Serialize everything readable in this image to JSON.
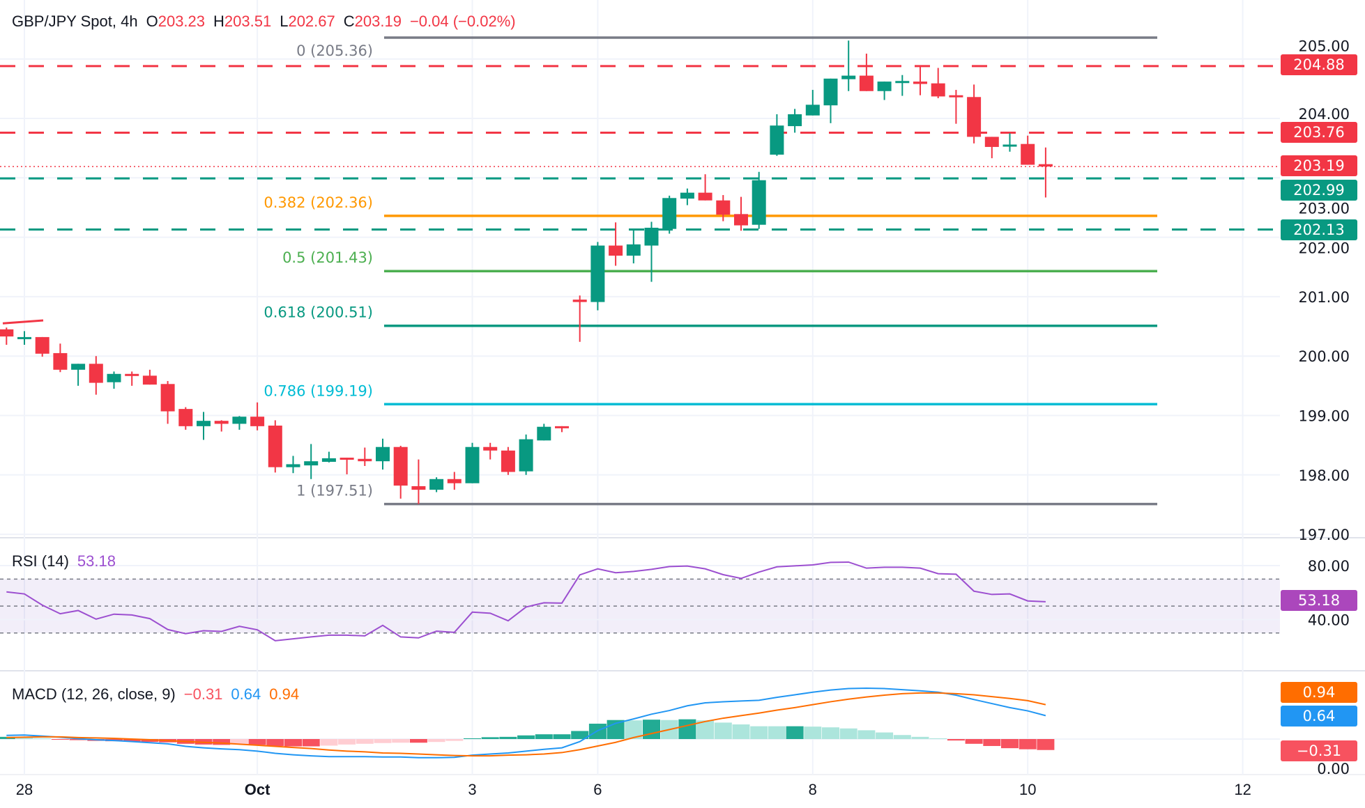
{
  "header": {
    "symbol": "GBP/JPY Spot, 4h",
    "o_label": "O",
    "o": "203.23",
    "h_label": "H",
    "h": "203.51",
    "l_label": "L",
    "l": "202.67",
    "c_label": "C",
    "c": "203.19",
    "change": "−0.04 (−0.02%)"
  },
  "colors": {
    "up": "#089981",
    "down": "#f23645",
    "grid": "#f0f3fa",
    "text": "#131722",
    "rsi": "#9c4fd0",
    "macd": "#2196f3",
    "signal": "#ff6d00"
  },
  "chart_data": [
    {
      "type": "candlestick",
      "title": "GBP/JPY Spot, 4h",
      "x_ticks": [
        {
          "label": "28",
          "index": 1
        },
        {
          "label": "Oct",
          "index": 14
        },
        {
          "label": "3",
          "index": 26
        },
        {
          "label": "6",
          "index": 33
        },
        {
          "label": "8",
          "index": 45
        },
        {
          "label": "10",
          "index": 57
        },
        {
          "label": "12",
          "index": 69
        }
      ],
      "y_ticks": [
        "205.00",
        "204.00",
        "203.00",
        "202.00",
        "201.00",
        "200.00",
        "199.00",
        "198.00",
        "197.00"
      ],
      "ylim": [
        196.95,
        206.0
      ],
      "grid": true,
      "ohlc": [
        [
          200.45,
          200.48,
          200.19,
          200.33
        ],
        [
          200.3,
          200.42,
          200.19,
          200.32
        ],
        [
          200.32,
          200.32,
          199.99,
          200.04
        ],
        [
          200.05,
          200.21,
          199.73,
          199.77
        ],
        [
          199.77,
          199.87,
          199.5,
          199.87
        ],
        [
          199.87,
          200.0,
          199.35,
          199.55
        ],
        [
          199.56,
          199.74,
          199.45,
          199.7
        ],
        [
          199.7,
          199.74,
          199.5,
          199.67
        ],
        [
          199.67,
          199.77,
          199.52,
          199.52
        ],
        [
          199.53,
          199.58,
          198.86,
          199.07
        ],
        [
          199.11,
          199.14,
          198.76,
          198.82
        ],
        [
          198.82,
          199.06,
          198.59,
          198.91
        ],
        [
          198.91,
          198.92,
          198.73,
          198.86
        ],
        [
          198.86,
          198.99,
          198.76,
          198.98
        ],
        [
          198.98,
          199.22,
          198.75,
          198.82
        ],
        [
          198.83,
          198.92,
          198.04,
          198.13
        ],
        [
          198.13,
          198.32,
          198.03,
          198.18
        ],
        [
          198.16,
          198.52,
          197.93,
          198.23
        ],
        [
          198.22,
          198.39,
          198.21,
          198.28
        ],
        [
          198.29,
          198.29,
          198.01,
          198.27
        ],
        [
          198.27,
          198.46,
          198.15,
          198.23
        ],
        [
          198.23,
          198.61,
          198.09,
          198.47
        ],
        [
          198.47,
          198.49,
          197.6,
          197.82
        ],
        [
          197.81,
          198.26,
          197.51,
          197.75
        ],
        [
          197.75,
          197.96,
          197.71,
          197.93
        ],
        [
          197.93,
          198.05,
          197.75,
          197.86
        ],
        [
          197.86,
          198.54,
          197.86,
          198.47
        ],
        [
          198.47,
          198.54,
          198.26,
          198.41
        ],
        [
          198.41,
          198.47,
          198.0,
          198.05
        ],
        [
          198.06,
          198.68,
          198.0,
          198.6
        ],
        [
          198.58,
          198.86,
          198.58,
          198.81
        ],
        [
          198.82,
          198.82,
          198.72,
          198.8
        ],
        [
          200.95,
          201.02,
          200.24,
          200.91
        ],
        [
          200.91,
          201.92,
          200.77,
          201.86
        ],
        [
          201.86,
          202.25,
          201.52,
          201.69
        ],
        [
          201.69,
          202.12,
          201.56,
          201.88
        ],
        [
          201.86,
          202.26,
          201.25,
          202.16
        ],
        [
          202.14,
          202.7,
          202.06,
          202.66
        ],
        [
          202.65,
          202.82,
          202.54,
          202.75
        ],
        [
          202.75,
          203.06,
          202.62,
          202.62
        ],
        [
          202.62,
          202.71,
          202.27,
          202.38
        ],
        [
          202.39,
          202.68,
          202.11,
          202.2
        ],
        [
          202.21,
          203.1,
          202.14,
          202.96
        ],
        [
          203.39,
          204.07,
          203.37,
          203.88
        ],
        [
          203.87,
          204.16,
          203.76,
          204.07
        ],
        [
          204.05,
          204.48,
          204.05,
          204.23
        ],
        [
          204.22,
          204.67,
          203.92,
          204.67
        ],
        [
          204.66,
          205.31,
          204.46,
          204.72
        ],
        [
          204.72,
          205.09,
          204.46,
          204.46
        ],
        [
          204.46,
          204.62,
          204.31,
          204.62
        ],
        [
          204.62,
          204.73,
          204.38,
          204.63
        ],
        [
          204.62,
          204.87,
          204.39,
          204.58
        ],
        [
          204.59,
          204.85,
          204.34,
          204.37
        ],
        [
          204.39,
          204.48,
          203.91,
          204.37
        ],
        [
          204.36,
          204.57,
          203.58,
          203.69
        ],
        [
          203.69,
          203.69,
          203.33,
          203.52
        ],
        [
          203.53,
          203.75,
          203.44,
          203.56
        ],
        [
          203.57,
          203.71,
          203.22,
          203.22
        ],
        [
          203.23,
          203.51,
          202.67,
          203.19
        ]
      ],
      "fibonacci": [
        {
          "label": "0 (205.36)",
          "price": 205.36,
          "color": "#787b86"
        },
        {
          "label": "0.382 (202.36)",
          "price": 202.36,
          "color": "#ff9800"
        },
        {
          "label": "0.5 (201.43)",
          "price": 201.43,
          "color": "#4caf50"
        },
        {
          "label": "0.618 (200.51)",
          "price": 200.51,
          "color": "#089981"
        },
        {
          "label": "0.786 (199.19)",
          "price": 199.19,
          "color": "#00bcd4"
        },
        {
          "label": "1 (197.51)",
          "price": 197.51,
          "color": "#787b86"
        }
      ],
      "horizontal_lines": [
        {
          "price": 204.88,
          "label": "204.88",
          "color": "#f23645",
          "style": "dashed"
        },
        {
          "price": 203.76,
          "label": "203.76",
          "color": "#f23645",
          "style": "dashed"
        },
        {
          "price": 203.19,
          "label": "203.19",
          "color": "#f23645",
          "style": "dotted"
        },
        {
          "price": 202.99,
          "label": "202.99",
          "color": "#089981",
          "style": "dashed"
        },
        {
          "price": 202.13,
          "label": "202.13",
          "color": "#089981",
          "style": "dashed"
        }
      ],
      "trendline": {
        "from": [
          0,
          200.55
        ],
        "to": [
          2,
          200.6
        ],
        "color": "#f23645"
      }
    },
    {
      "type": "line",
      "name": "RSI (14)",
      "value_label": "53.18",
      "y_ticks": [
        "80.00",
        "40.00"
      ],
      "bands": [
        70,
        50,
        30
      ],
      "values": [
        60.5,
        59.0,
        50.7,
        44.3,
        46.7,
        40.3,
        44.0,
        43.4,
        40.7,
        32.6,
        29.5,
        31.7,
        31.2,
        35.0,
        32.4,
        24.3,
        25.7,
        27.1,
        28.4,
        28.4,
        27.9,
        35.7,
        27.1,
        26.4,
        31.4,
        30.5,
        45.5,
        44.7,
        39.1,
        49.3,
        52.4,
        52.2,
        73.1,
        77.6,
        74.7,
        75.7,
        77.2,
        79.3,
        79.7,
        77.6,
        73.3,
        70.5,
        75.2,
        79.1,
        79.8,
        80.5,
        82.4,
        82.6,
        78.1,
        78.8,
        78.8,
        78.1,
        74.0,
        73.6,
        61.0,
        58.6,
        59.0,
        53.8,
        53.18
      ]
    },
    {
      "type": "line+bar",
      "name": "MACD (12, 26, close, 9)",
      "hist_label": "−0.31",
      "macd_label": "0.64",
      "signal_label": "0.94",
      "y_ticks": [
        "0.00"
      ],
      "macd": [
        0.1,
        0.11,
        0.08,
        0.05,
        0.01,
        -0.02,
        -0.04,
        -0.07,
        -0.1,
        -0.13,
        -0.2,
        -0.24,
        -0.27,
        -0.29,
        -0.33,
        -0.39,
        -0.43,
        -0.46,
        -0.48,
        -0.48,
        -0.48,
        -0.49,
        -0.49,
        -0.51,
        -0.51,
        -0.5,
        -0.44,
        -0.41,
        -0.38,
        -0.33,
        -0.28,
        -0.24,
        -0.07,
        0.23,
        0.43,
        0.55,
        0.68,
        0.78,
        0.91,
        0.99,
        1.02,
        1.04,
        1.06,
        1.14,
        1.21,
        1.28,
        1.34,
        1.38,
        1.39,
        1.38,
        1.35,
        1.32,
        1.28,
        1.2,
        1.08,
        0.97,
        0.86,
        0.77,
        0.64
      ],
      "signal": [
        0.04,
        0.05,
        0.06,
        0.06,
        0.04,
        0.03,
        0.02,
        0.0,
        -0.02,
        -0.04,
        -0.07,
        -0.09,
        -0.11,
        -0.14,
        -0.17,
        -0.2,
        -0.23,
        -0.26,
        -0.3,
        -0.33,
        -0.35,
        -0.38,
        -0.39,
        -0.41,
        -0.43,
        -0.45,
        -0.46,
        -0.46,
        -0.44,
        -0.43,
        -0.41,
        -0.37,
        -0.29,
        -0.19,
        -0.09,
        0.04,
        0.15,
        0.26,
        0.37,
        0.48,
        0.57,
        0.64,
        0.71,
        0.79,
        0.86,
        0.94,
        1.02,
        1.09,
        1.15,
        1.2,
        1.24,
        1.26,
        1.26,
        1.24,
        1.21,
        1.16,
        1.11,
        1.05,
        0.94
      ]
    }
  ]
}
